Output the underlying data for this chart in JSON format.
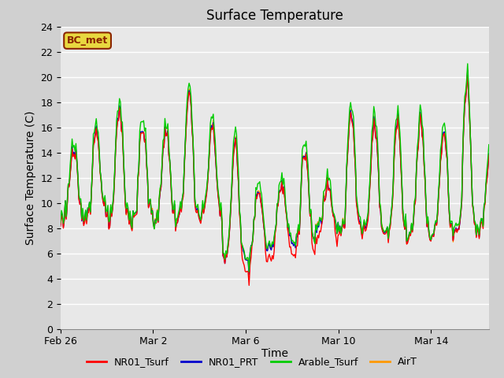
{
  "title": "Surface Temperature",
  "ylabel": "Surface Temperature (C)",
  "xlabel": "Time",
  "ylim": [
    0,
    24
  ],
  "yticks": [
    0,
    2,
    4,
    6,
    8,
    10,
    12,
    14,
    16,
    18,
    20,
    22,
    24
  ],
  "plot_bg_color": "#e8e8e8",
  "fig_bg_color": "#d0d0d0",
  "grid_color": "#ffffff",
  "annotation_text": "BC_met",
  "annotation_bg": "#e8d840",
  "annotation_border": "#8b2500",
  "legend_entries": [
    "NR01_Tsurf",
    "NR01_PRT",
    "Arable_Tsurf",
    "AirT"
  ],
  "line_colors": [
    "#ff0000",
    "#0000cc",
    "#00cc00",
    "#ff9900"
  ],
  "line_width": 1.0,
  "x_tick_labels": [
    "Feb 26",
    "Mar 2",
    "Mar 6",
    "Mar 10",
    "Mar 14"
  ],
  "x_tick_days": [
    0,
    4,
    8,
    12,
    16
  ],
  "total_days": 18.5,
  "n_points": 444
}
